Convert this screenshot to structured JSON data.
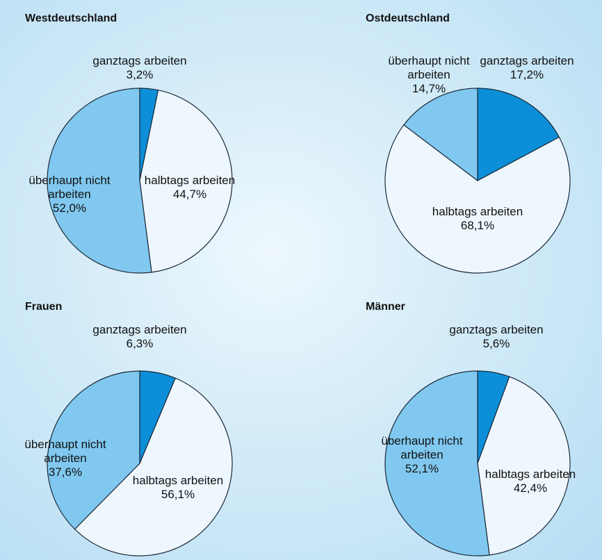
{
  "chart_data": [
    {
      "type": "pie",
      "title": "Westdeutschland",
      "categories": [
        "ganztags arbeiten",
        "halbtags arbeiten",
        "überhaupt nicht arbeiten"
      ],
      "values": [
        3.2,
        44.7,
        52.0
      ],
      "value_labels": [
        "3,2%",
        "44,7%",
        "52,0%"
      ],
      "colors": [
        "#0c8fd8",
        "#eef7fd",
        "#80c8ef"
      ]
    },
    {
      "type": "pie",
      "title": "Ostdeutschland",
      "categories": [
        "ganztags arbeiten",
        "halbtags arbeiten",
        "überhaupt nicht arbeiten"
      ],
      "values": [
        17.2,
        68.1,
        14.7
      ],
      "value_labels": [
        "17,2%",
        "68,1%",
        "14,7%"
      ],
      "colors": [
        "#0c8fd8",
        "#eef7fd",
        "#80c8ef"
      ]
    },
    {
      "type": "pie",
      "title": "Frauen",
      "categories": [
        "ganztags arbeiten",
        "halbtags arbeiten",
        "überhaupt nicht arbeiten"
      ],
      "values": [
        6.3,
        56.1,
        37.6
      ],
      "value_labels": [
        "6,3%",
        "56,1%",
        "37,6%"
      ],
      "colors": [
        "#0c8fd8",
        "#eef7fd",
        "#80c8ef"
      ]
    },
    {
      "type": "pie",
      "title": "Männer",
      "categories": [
        "ganztags arbeiten",
        "halbtags arbeiten",
        "überhaupt nicht arbeiten"
      ],
      "values": [
        5.6,
        42.4,
        52.1
      ],
      "value_labels": [
        "5,6%",
        "42,4%",
        "52,1%"
      ],
      "colors": [
        "#0c8fd8",
        "#eef7fd",
        "#80c8ef"
      ]
    }
  ]
}
